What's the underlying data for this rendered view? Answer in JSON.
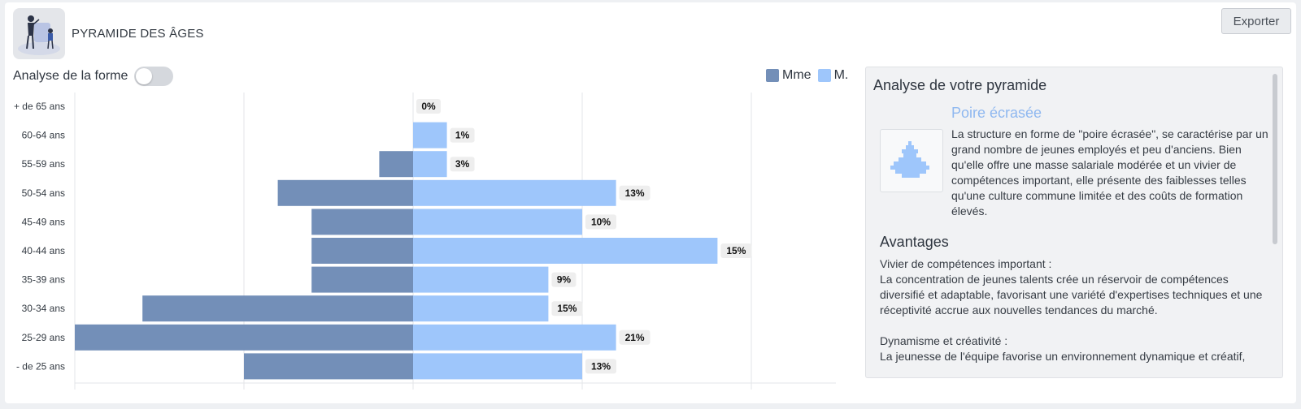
{
  "header": {
    "title": "PYRAMIDE DES ÂGES",
    "icon": "family-illustration-icon",
    "export_label": "Exporter"
  },
  "controls": {
    "toggle_label": "Analyse de la forme",
    "toggle_on": false
  },
  "colors": {
    "female": "#738fb8",
    "male": "#9ec6fb",
    "accent": "#8fb8f0"
  },
  "chart_data": {
    "type": "bar",
    "orientation": "horizontal-pyramid",
    "categories": [
      "+ de 65 ans",
      "60-64 ans",
      "55-59 ans",
      "50-54 ans",
      "45-49 ans",
      "40-44 ans",
      "35-39 ans",
      "30-34 ans",
      "25-29 ans",
      "- de 25 ans"
    ],
    "series": [
      {
        "name": "Mme",
        "values": [
          0,
          0,
          1,
          4,
          3,
          3,
          3,
          8,
          10,
          5
        ]
      },
      {
        "name": "M.",
        "values": [
          0,
          1,
          1,
          6,
          5,
          9,
          4,
          4,
          6,
          5
        ]
      }
    ],
    "data_labels": [
      "0%",
      "1%",
      "3%",
      "13%",
      "10%",
      "15%",
      "9%",
      "15%",
      "21%",
      "13%"
    ],
    "xlim": [
      -10,
      12.5
    ],
    "grid": true,
    "legend": "top-right"
  },
  "analysis": {
    "title": "Analyse de votre pyramide",
    "shape_name": "Poire écrasée",
    "shape_icon": "pyramid-shape-icon",
    "shape_description": "La structure en forme de \"poire écrasée\", se caractérise par un grand nombre de jeunes employés et peu d'anciens. Bien qu'elle offre une masse salariale modérée et un vivier de compétences important, elle présente des faiblesses telles qu'une culture commune limitée et des coûts de formation élevés.",
    "advantages_title": "Avantages",
    "advantages": [
      {
        "title": "Vivier de compétences important :",
        "text": "La concentration de jeunes talents crée un réservoir de compétences diversifié et adaptable, favorisant une variété d'expertises techniques et une réceptivité accrue aux nouvelles tendances du marché."
      },
      {
        "title": "Dynamisme et créativité :",
        "text": "La jeunesse de l'équipe favorise un environnement dynamique et créatif,"
      }
    ]
  }
}
